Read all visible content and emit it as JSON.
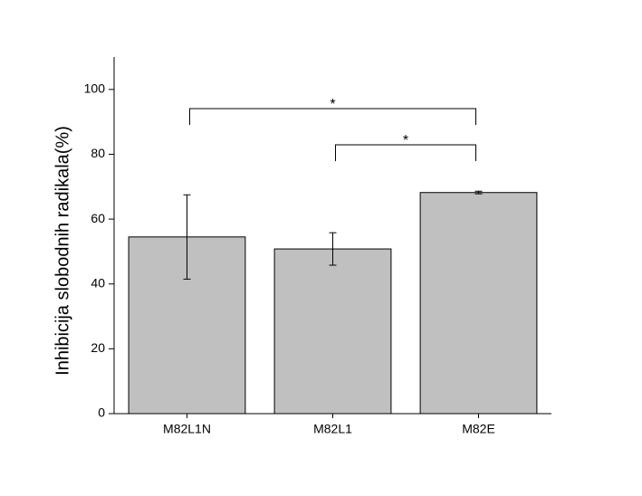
{
  "chart_data": {
    "type": "bar",
    "y_label": "Inhibicija slobodnih radikala(%)",
    "categories": [
      "M82L1N",
      "M82L1",
      "M82E"
    ],
    "values": [
      54.5,
      50.8,
      68.2
    ],
    "errors": [
      13,
      5,
      0.4
    ],
    "color": "#c0c0c0",
    "ylim": [
      0,
      110
    ],
    "yticks": [
      0,
      20,
      40,
      60,
      80,
      100
    ],
    "significance": [
      {
        "label": "*",
        "groups": [
          0,
          2
        ]
      },
      {
        "label": "*",
        "groups": [
          1,
          2
        ]
      }
    ]
  }
}
